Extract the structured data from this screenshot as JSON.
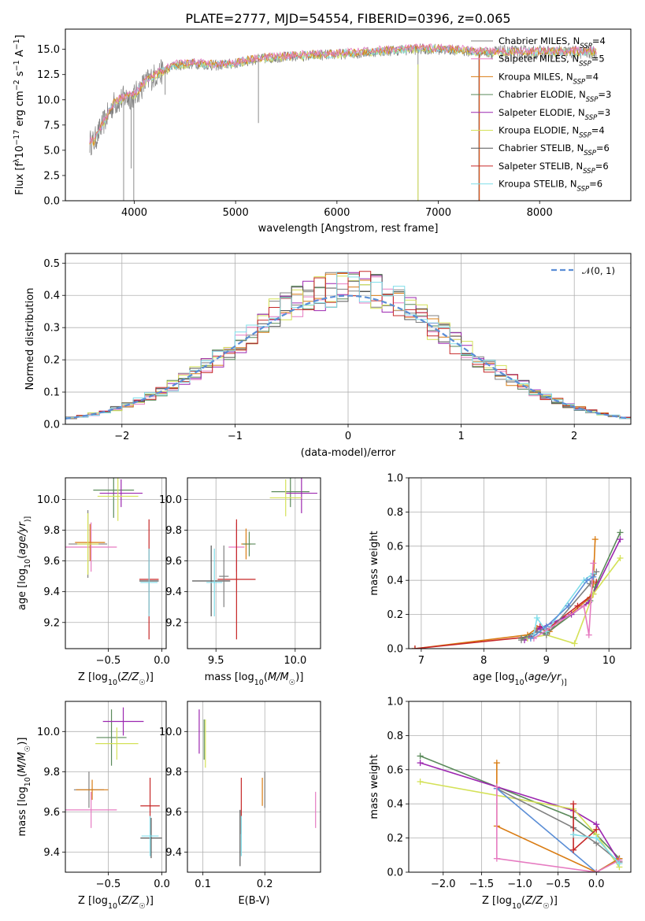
{
  "colors": [
    "#808080",
    "#e67bc1",
    "#d97c13",
    "#5a8a5a",
    "#9c27b0",
    "#d4e157",
    "#555555",
    "#c62828",
    "#80deea"
  ],
  "chart_data": [
    {
      "id": "spectrum",
      "type": "line",
      "title": "PLATE=2777, MJD=54554, FIBERID=0396, z=0.065",
      "xlabel": "wavelength [Angstrom, rest frame]",
      "ylabel": "Flux [f$_\\lambda$10$^{-17}$ erg cm$^{-2}$ s$^{-1}$ A$^{-1}$]",
      "ylabel_parts": [
        "Flux [f",
        "λ",
        "10",
        "−17",
        " erg cm",
        "−2",
        " s",
        "−1",
        " A",
        "−1",
        "]"
      ],
      "xlim": [
        3320,
        8900
      ],
      "ylim": [
        0,
        17
      ],
      "xticks": [
        4000,
        5000,
        6000,
        7000,
        8000
      ],
      "yticks": [
        0.0,
        2.5,
        5.0,
        7.5,
        10.0,
        12.5,
        15.0
      ],
      "ytick_labels": [
        "0.0",
        "2.5",
        "5.0",
        "7.5",
        "10.0",
        "12.5",
        "15.0"
      ],
      "grid": false,
      "legend_position": "right",
      "legend": [
        {
          "name": "Chabrier MILES, N",
          "sub": "SSP",
          "suffix": "=4"
        },
        {
          "name": "Salpeter MILES, N",
          "sub": "SSP",
          "suffix": "=5"
        },
        {
          "name": "Kroupa MILES, N",
          "sub": "SSP",
          "suffix": "=4"
        },
        {
          "name": "Chabrier ELODIE, N",
          "sub": "SSP",
          "suffix": "=3"
        },
        {
          "name": "Salpeter ELODIE, N",
          "sub": "SSP",
          "suffix": "=3"
        },
        {
          "name": "Kroupa ELODIE, N",
          "sub": "SSP",
          "suffix": "=4"
        },
        {
          "name": "Chabrier STELIB, N",
          "sub": "SSP",
          "suffix": "=6"
        },
        {
          "name": "Salpeter STELIB, N",
          "sub": "SSP",
          "suffix": "=6"
        },
        {
          "name": "Kroupa STELIB, N",
          "sub": "SSP",
          "suffix": "=6"
        }
      ],
      "continuum": {
        "x": [
          3600,
          3700,
          3800,
          3900,
          4000,
          4100,
          4200,
          4400,
          4600,
          4800,
          5000,
          5200,
          5400,
          5600,
          5800,
          6000,
          6200,
          6400,
          6600,
          6800,
          7000,
          7200,
          7400
        ],
        "y": [
          5.8,
          7.8,
          9.6,
          10.2,
          10.4,
          11.6,
          12.4,
          13.4,
          13.6,
          13.4,
          13.6,
          14.0,
          14.2,
          14.3,
          14.4,
          14.5,
          14.6,
          14.8,
          14.9,
          15.0,
          15.0,
          14.9,
          14.7
        ]
      },
      "dips": [
        {
          "x": 3895,
          "y": 0.0
        },
        {
          "x": 3935,
          "y": 9.5
        },
        {
          "x": 3970,
          "y": 3.2
        },
        {
          "x": 3995,
          "y": 0.0
        },
        {
          "x": 4305,
          "y": 10.5
        },
        {
          "x": 5225,
          "y": 7.7
        },
        {
          "x": 6800,
          "y": 0.0
        },
        {
          "x": 7400,
          "y": 0.0
        }
      ]
    },
    {
      "id": "residuals",
      "type": "step",
      "xlabel": "(data-model)/error",
      "ylabel": "Normed distribution",
      "xlim": [
        -2.5,
        2.5
      ],
      "ylim": [
        0,
        0.53
      ],
      "xticks": [
        -2,
        -1,
        0,
        1,
        2
      ],
      "xtick_labels": [
        "−2",
        "−1",
        "0",
        "1",
        "2"
      ],
      "yticks": [
        0.0,
        0.1,
        0.2,
        0.3,
        0.4,
        0.5
      ],
      "ytick_labels": [
        "0.0",
        "0.1",
        "0.2",
        "0.3",
        "0.4",
        "0.5"
      ],
      "grid": true,
      "legend_position": "top-right",
      "legend": "𝒩(0, 1)",
      "normal": {
        "mu": 0,
        "sigma": 1,
        "color": "#5b8ed6"
      },
      "bin_width": 0.1
    },
    {
      "id": "age_vs_z",
      "type": "scatter",
      "xlabel": "Z [log₁₀(Z/Z☉)]",
      "xlabel_parts": [
        "Z [log",
        "10",
        "(",
        "Z/Z",
        "☉",
        ")]"
      ],
      "ylabel": "age  [log₁₀(age/yr)]",
      "ylabel_parts": [
        "age  [log",
        "10",
        "(",
        "age/yr",
        ")]"
      ],
      "xlim": [
        -0.9,
        0.04
      ],
      "ylim": [
        9.03,
        10.14
      ],
      "xticks": [
        -0.5,
        0.0
      ],
      "xtick_labels": [
        "−0.5",
        "0.0"
      ],
      "yticks": [
        9.2,
        9.4,
        9.6,
        9.8,
        10.0
      ],
      "ytick_labels": [
        "9.2",
        "9.4",
        "9.6",
        "9.8",
        "10.0"
      ],
      "grid": true,
      "points": [
        {
          "x": -0.69,
          "y": 9.71,
          "xerr": 0.18,
          "yerr": 0.22,
          "c": 0
        },
        {
          "x": -0.66,
          "y": 9.69,
          "xerr": 0.24,
          "yerr": 0.16,
          "c": 1
        },
        {
          "x": -0.67,
          "y": 9.72,
          "xerr": 0.14,
          "yerr": 0.12,
          "c": 2
        },
        {
          "x": -0.45,
          "y": 10.06,
          "xerr": 0.19,
          "yerr": 0.18,
          "c": 3
        },
        {
          "x": -0.38,
          "y": 10.04,
          "xerr": 0.2,
          "yerr": 0.09,
          "c": 4
        },
        {
          "x": -0.41,
          "y": 10.02,
          "xerr": 0.19,
          "yerr": 0.16,
          "c": 5
        },
        {
          "x": -0.12,
          "y": 9.47,
          "xerr": 0.09,
          "yerr": 0.21,
          "c": 6
        },
        {
          "x": -0.12,
          "y": 9.48,
          "xerr": 0.09,
          "yerr": 0.39,
          "c": 7
        },
        {
          "x": -0.12,
          "y": 9.46,
          "xerr": 0.08,
          "yerr": 0.22,
          "c": 8
        },
        {
          "x": -0.69,
          "y": 9.71,
          "xerr": 0.1,
          "yerr": 0.2,
          "c": 5
        }
      ]
    },
    {
      "id": "age_vs_mass",
      "type": "scatter",
      "xlabel": "mass [log₁₀(M/M☉)]",
      "xlabel_parts": [
        "mass [log",
        "10",
        "(",
        "M/M",
        "☉",
        ")]"
      ],
      "xlim": [
        9.32,
        10.16
      ],
      "ylim": [
        9.03,
        10.14
      ],
      "xticks": [
        9.5,
        10.0
      ],
      "xtick_labels": [
        "9.5",
        "10.0"
      ],
      "yticks": [
        9.2,
        9.4,
        9.6,
        9.8,
        10.0
      ],
      "ytick_labels": [
        "9.2",
        "9.4",
        "9.6",
        "9.8",
        "10.0"
      ],
      "grid": true,
      "points": [
        {
          "x": 9.69,
          "y": 9.71,
          "xerr": 0.03,
          "yerr": 0.1,
          "c": 2
        },
        {
          "x": 9.63,
          "y": 9.69,
          "xerr": 0.05,
          "yerr": 0.16,
          "c": 1
        },
        {
          "x": 9.71,
          "y": 9.71,
          "xerr": 0.04,
          "yerr": 0.08,
          "c": 3
        },
        {
          "x": 9.97,
          "y": 10.05,
          "xerr": 0.12,
          "yerr": 0.1,
          "c": 3
        },
        {
          "x": 10.04,
          "y": 10.04,
          "xerr": 0.1,
          "yerr": 0.13,
          "c": 4
        },
        {
          "x": 9.94,
          "y": 10.01,
          "xerr": 0.1,
          "yerr": 0.12,
          "c": 5
        },
        {
          "x": 9.63,
          "y": 9.48,
          "xerr": 0.12,
          "yerr": 0.39,
          "c": 7
        },
        {
          "x": 9.47,
          "y": 9.47,
          "xerr": 0.12,
          "yerr": 0.23,
          "c": 6
        },
        {
          "x": 9.49,
          "y": 9.46,
          "xerr": 0.05,
          "yerr": 0.22,
          "c": 8
        },
        {
          "x": 9.55,
          "y": 9.5,
          "xerr": 0.03,
          "yerr": 0.2,
          "c": 0
        }
      ]
    },
    {
      "id": "weight_vs_age",
      "type": "line",
      "xlabel": "age  [log₁₀(age/yr)]",
      "xlabel_parts": [
        "age  [log",
        "10",
        "(",
        "age/yr",
        ")]"
      ],
      "ylabel": "mass weight",
      "xlim": [
        6.8,
        10.35
      ],
      "ylim": [
        0,
        1
      ],
      "xticks": [
        7,
        8,
        9,
        10
      ],
      "yticks": [
        0.0,
        0.2,
        0.4,
        0.6,
        0.8,
        1.0
      ],
      "ytick_labels": [
        "0.0",
        "0.2",
        "0.4",
        "0.6",
        "0.8",
        "1.0"
      ],
      "grid": true,
      "series": [
        {
          "c": 2,
          "x": [
            6.9,
            8.7,
            8.85,
            9.05,
            9.7,
            9.75,
            9.78
          ],
          "y": [
            0.0,
            0.08,
            0.12,
            0.1,
            0.3,
            0.38,
            0.64
          ]
        },
        {
          "c": 7,
          "x": [
            6.9,
            8.75,
            8.9,
            9.0,
            9.5,
            9.75,
            9.8
          ],
          "y": [
            0.0,
            0.07,
            0.13,
            0.11,
            0.25,
            0.32,
            0.39
          ]
        },
        {
          "c": 3,
          "x": [
            8.6,
            8.85,
            9.0,
            9.7,
            9.78,
            10.18
          ],
          "y": [
            0.06,
            0.1,
            0.09,
            0.28,
            0.36,
            0.68
          ]
        },
        {
          "c": 4,
          "x": [
            8.65,
            8.9,
            9.4,
            9.68,
            10.18
          ],
          "y": [
            0.05,
            0.12,
            0.2,
            0.27,
            0.64
          ]
        },
        {
          "c": 5,
          "x": [
            8.7,
            9.0,
            9.45,
            9.75,
            10.18
          ],
          "y": [
            0.06,
            0.08,
            0.03,
            0.32,
            0.53
          ]
        },
        {
          "c": 0,
          "x": [
            8.6,
            8.85,
            9.0,
            9.7,
            9.8
          ],
          "y": [
            0.05,
            0.1,
            0.08,
            0.38,
            0.45
          ]
        },
        {
          "c": 8,
          "x": [
            8.8,
            8.85,
            9.0,
            9.6,
            9.75
          ],
          "y": [
            0.08,
            0.18,
            0.1,
            0.4,
            0.44
          ]
        },
        {
          "c": 1,
          "x": [
            8.8,
            9.6,
            9.68,
            9.75
          ],
          "y": [
            0.06,
            0.25,
            0.08,
            0.5
          ]
        },
        {
          "c": 9,
          "x": [
            8.75,
            9.0,
            9.35,
            9.65,
            9.75
          ],
          "y": [
            0.06,
            0.13,
            0.25,
            0.4,
            0.42
          ]
        }
      ]
    },
    {
      "id": "mass_vs_z",
      "type": "scatter",
      "xlabel": "Z [log₁₀(Z/Z☉)]",
      "xlabel_parts": [
        "Z [log",
        "10",
        "(",
        "Z/Z",
        "☉",
        ")]"
      ],
      "ylabel": "mass [log₁₀(M/M☉)]",
      "ylabel_parts": [
        "mass [log",
        "10",
        "(",
        "M/M",
        "☉",
        ")]"
      ],
      "xlim": [
        -0.9,
        0.04
      ],
      "ylim": [
        9.3,
        10.15
      ],
      "xticks": [
        -0.5,
        0.0
      ],
      "xtick_labels": [
        "−0.5",
        "0.0"
      ],
      "yticks": [
        9.4,
        9.6,
        9.8,
        10.0
      ],
      "ytick_labels": [
        "9.4",
        "9.6",
        "9.8",
        "10.0"
      ],
      "grid": true,
      "points": [
        {
          "x": -0.68,
          "y": 9.71,
          "xerr": 0.14,
          "yerr": 0.09,
          "c": 0
        },
        {
          "x": -0.66,
          "y": 9.61,
          "xerr": 0.24,
          "yerr": 0.09,
          "c": 1
        },
        {
          "x": -0.65,
          "y": 9.71,
          "xerr": 0.15,
          "yerr": 0.05,
          "c": 2
        },
        {
          "x": -0.47,
          "y": 9.97,
          "xerr": 0.14,
          "yerr": 0.14,
          "c": 3
        },
        {
          "x": -0.36,
          "y": 10.05,
          "xerr": 0.19,
          "yerr": 0.07,
          "c": 4
        },
        {
          "x": -0.42,
          "y": 9.94,
          "xerr": 0.2,
          "yerr": 0.08,
          "c": 5
        },
        {
          "x": -0.1,
          "y": 9.47,
          "xerr": 0.1,
          "yerr": 0.1,
          "c": 6
        },
        {
          "x": -0.11,
          "y": 9.63,
          "xerr": 0.09,
          "yerr": 0.14,
          "c": 7
        },
        {
          "x": -0.11,
          "y": 9.48,
          "xerr": 0.08,
          "yerr": 0.1,
          "c": 8
        }
      ]
    },
    {
      "id": "mass_vs_ebv",
      "type": "scatter",
      "xlabel": "E(B-V)",
      "xlim": [
        0.075,
        0.29
      ],
      "ylim": [
        9.3,
        10.15
      ],
      "xticks": [
        0.1,
        0.2
      ],
      "xtick_labels": [
        "0.1",
        "0.2"
      ],
      "yticks": [
        9.4,
        9.6,
        9.8,
        10.0
      ],
      "ytick_labels": [
        "9.4",
        "9.6",
        "9.8",
        "10.0"
      ],
      "grid": true,
      "points": [
        {
          "x": 0.094,
          "y": 10.0,
          "xerr": 0.0,
          "yerr": 0.11,
          "c": 4
        },
        {
          "x": 0.104,
          "y": 9.94,
          "xerr": 0.0,
          "yerr": 0.12,
          "c": 5
        },
        {
          "x": 0.102,
          "y": 9.96,
          "xerr": 0.0,
          "yerr": 0.1,
          "c": 3
        },
        {
          "x": 0.16,
          "y": 9.47,
          "xerr": 0.0,
          "yerr": 0.14,
          "c": 6
        },
        {
          "x": 0.162,
          "y": 9.63,
          "xerr": 0.0,
          "yerr": 0.14,
          "c": 7
        },
        {
          "x": 0.162,
          "y": 9.48,
          "xerr": 0.0,
          "yerr": 0.1,
          "c": 8
        },
        {
          "x": 0.196,
          "y": 9.7,
          "xerr": 0.0,
          "yerr": 0.07,
          "c": 2
        },
        {
          "x": 0.2,
          "y": 9.71,
          "xerr": 0.0,
          "yerr": 0.09,
          "c": 0
        },
        {
          "x": 0.282,
          "y": 9.61,
          "xerr": 0.0,
          "yerr": 0.09,
          "c": 1
        }
      ]
    },
    {
      "id": "weight_vs_z",
      "type": "line",
      "xlabel": "Z [log₁₀(Z/Z☉)]",
      "xlabel_parts": [
        "Z [log",
        "10",
        "(",
        "Z/Z",
        "☉",
        ")]"
      ],
      "ylabel": "mass weight",
      "xlim": [
        -2.45,
        0.45
      ],
      "ylim": [
        0,
        1
      ],
      "xticks": [
        -2.0,
        -1.5,
        -1.0,
        -0.5,
        0.0
      ],
      "xtick_labels": [
        "−2.0",
        "−1.5",
        "−1.0",
        "−0.5",
        "0.0"
      ],
      "yticks": [
        0.0,
        0.2,
        0.4,
        0.6,
        0.8,
        1.0
      ],
      "ytick_labels": [
        "0.0",
        "0.2",
        "0.4",
        "0.6",
        "0.8",
        "1.0"
      ],
      "grid": true,
      "series": [
        {
          "c": 3,
          "x": [
            -2.3,
            -0.3,
            0.0,
            0.3
          ],
          "y": [
            0.68,
            0.32,
            0.22,
            0.08
          ]
        },
        {
          "c": 4,
          "x": [
            -2.3,
            -0.3,
            0.0,
            0.3
          ],
          "y": [
            0.64,
            0.36,
            0.28,
            0.06
          ]
        },
        {
          "c": 5,
          "x": [
            -2.3,
            -0.3,
            0.0,
            0.3
          ],
          "y": [
            0.53,
            0.37,
            0.22,
            0.03
          ]
        },
        {
          "c": 0,
          "x": [
            -1.3,
            -0.3,
            0.0,
            0.3
          ],
          "y": [
            0.49,
            0.26,
            0.17,
            0.06
          ]
        },
        {
          "c": 10,
          "x": [
            -1.3,
            0.0,
            0.3
          ],
          "y": [
            0.49,
            0.0,
            0.08
          ]
        },
        {
          "c": 2,
          "x": [
            -1.3,
            -1.3,
            0.0,
            0.3
          ],
          "y": [
            0.64,
            0.27,
            0.0,
            0.08
          ]
        },
        {
          "c": 1,
          "x": [
            -1.3,
            -1.3,
            0.0,
            0.3
          ],
          "y": [
            0.5,
            0.08,
            0.0,
            0.07
          ]
        },
        {
          "c": 7,
          "x": [
            -0.3,
            -0.3,
            0.0
          ],
          "y": [
            0.4,
            0.13,
            0.25
          ]
        },
        {
          "c": 8,
          "x": [
            -0.3,
            0.0,
            0.3
          ],
          "y": [
            0.22,
            0.2,
            0.05
          ]
        }
      ]
    }
  ]
}
